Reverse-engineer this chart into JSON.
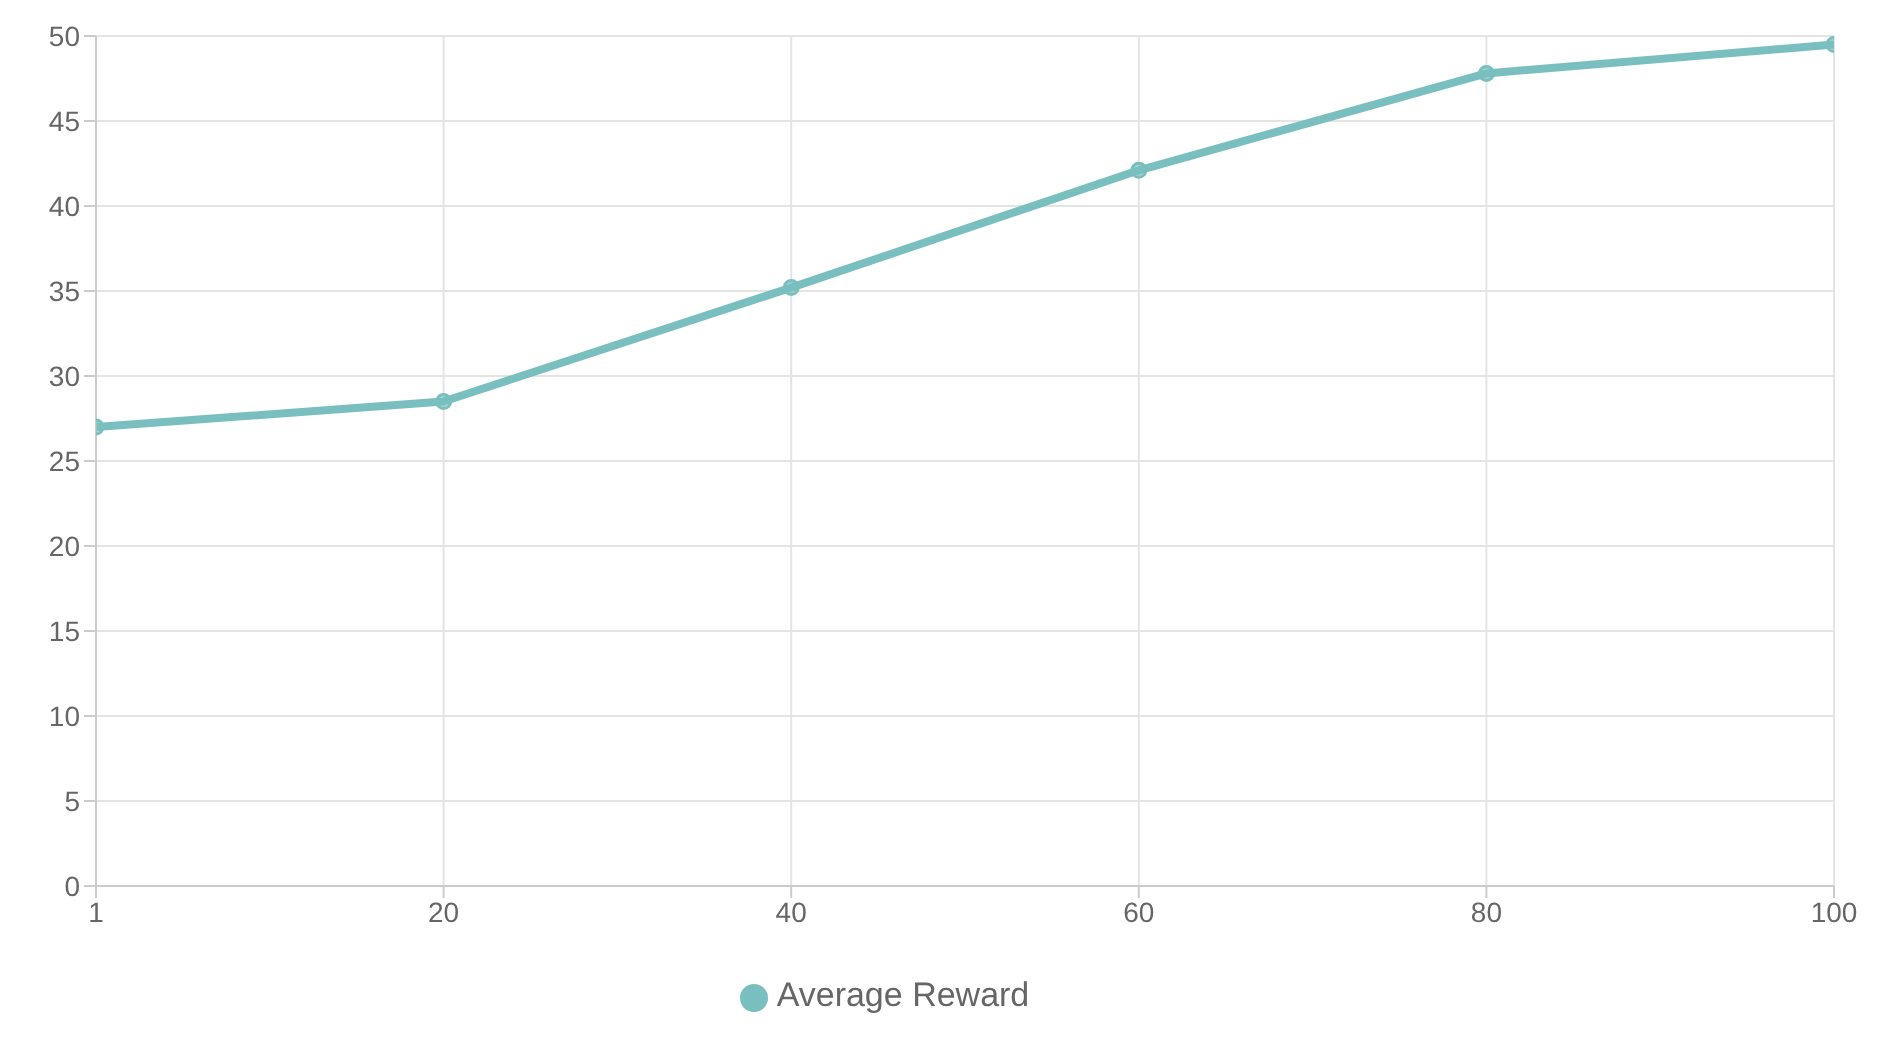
{
  "chart_data": {
    "type": "line",
    "categories": [
      "1",
      "20",
      "40",
      "60",
      "80",
      "100"
    ],
    "series": [
      {
        "name": "Average Reward",
        "color": "#7abfbf",
        "values": [
          27,
          28.5,
          35.2,
          42.1,
          47.8,
          49.5
        ]
      }
    ],
    "ylim": [
      0,
      50
    ],
    "yticks": [
      0,
      5,
      10,
      15,
      20,
      25,
      30,
      35,
      40,
      45,
      50
    ],
    "grid": true,
    "legend": "bottom",
    "marker": "circle",
    "line_style": "solid"
  }
}
